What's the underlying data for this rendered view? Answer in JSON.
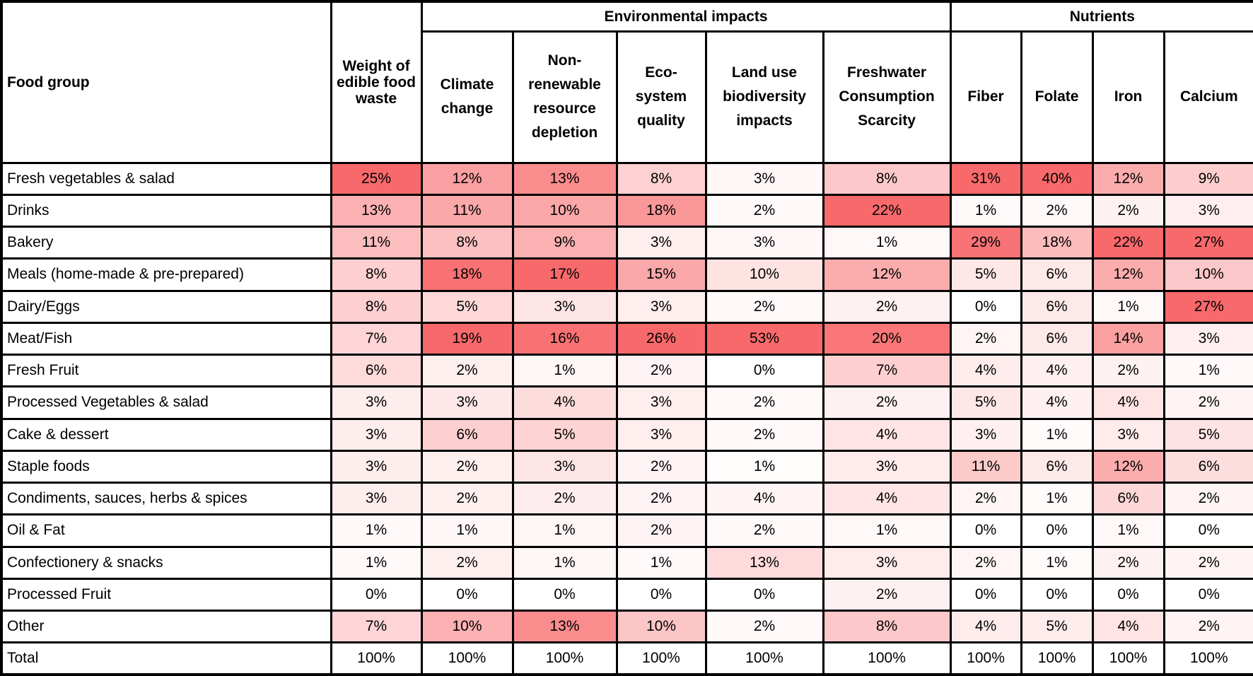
{
  "chart_data": {
    "type": "heatmap",
    "row_header": "Food group",
    "column_groups": [
      {
        "label": "",
        "columns": [
          "Weight of edible food waste"
        ]
      },
      {
        "label": "Environmental impacts",
        "columns": [
          "Climate change",
          "Non-renewable resource depletion",
          "Eco-system quality",
          "Land use biodiversity impacts",
          "Freshwater Consumption Scarcity"
        ]
      },
      {
        "label": "Nutrients",
        "columns": [
          "Fiber",
          "Folate",
          "Iron",
          "Calcium"
        ]
      }
    ],
    "value_unit": "%",
    "rows": [
      {
        "label": "Fresh vegetables & salad",
        "values": [
          25,
          12,
          13,
          8,
          3,
          8,
          31,
          40,
          12,
          9
        ]
      },
      {
        "label": "Drinks",
        "values": [
          13,
          11,
          10,
          18,
          2,
          22,
          1,
          2,
          2,
          3
        ]
      },
      {
        "label": "Bakery",
        "values": [
          11,
          8,
          9,
          3,
          3,
          1,
          29,
          18,
          22,
          27
        ]
      },
      {
        "label": "Meals (home-made & pre-prepared)",
        "values": [
          8,
          18,
          17,
          15,
          10,
          12,
          5,
          6,
          12,
          10
        ]
      },
      {
        "label": "Dairy/Eggs",
        "values": [
          8,
          5,
          3,
          3,
          2,
          2,
          0,
          6,
          1,
          27
        ]
      },
      {
        "label": "Meat/Fish",
        "values": [
          7,
          19,
          16,
          26,
          53,
          20,
          2,
          6,
          14,
          3
        ]
      },
      {
        "label": "Fresh Fruit",
        "values": [
          6,
          2,
          1,
          2,
          0,
          7,
          4,
          4,
          2,
          1
        ]
      },
      {
        "label": "Processed Vegetables & salad",
        "values": [
          3,
          3,
          4,
          3,
          2,
          2,
          5,
          4,
          4,
          2
        ]
      },
      {
        "label": "Cake & dessert",
        "values": [
          3,
          6,
          5,
          3,
          2,
          4,
          3,
          1,
          3,
          5
        ]
      },
      {
        "label": "Staple foods",
        "values": [
          3,
          2,
          3,
          2,
          1,
          3,
          11,
          6,
          12,
          6
        ]
      },
      {
        "label": "Condiments, sauces, herbs & spices",
        "values": [
          3,
          2,
          2,
          2,
          4,
          4,
          2,
          1,
          6,
          2
        ]
      },
      {
        "label": "Oil & Fat",
        "values": [
          1,
          1,
          1,
          2,
          2,
          1,
          0,
          0,
          1,
          0
        ]
      },
      {
        "label": "Confectionery & snacks",
        "values": [
          1,
          2,
          1,
          1,
          13,
          3,
          2,
          1,
          2,
          2
        ]
      },
      {
        "label": "Processed Fruit",
        "values": [
          0,
          0,
          0,
          0,
          0,
          2,
          0,
          0,
          0,
          0
        ]
      },
      {
        "label": "Other",
        "values": [
          7,
          10,
          13,
          10,
          2,
          8,
          4,
          5,
          4,
          2
        ]
      }
    ],
    "total": {
      "label": "Total",
      "values": [
        100,
        100,
        100,
        100,
        100,
        100,
        100,
        100,
        100,
        100
      ]
    },
    "heatmap": {
      "scaling": "per-column",
      "min_color": "#FFFFFF",
      "max_color": "#F8696B"
    },
    "layout": {
      "grid": "on",
      "border_color": "#000000"
    }
  }
}
